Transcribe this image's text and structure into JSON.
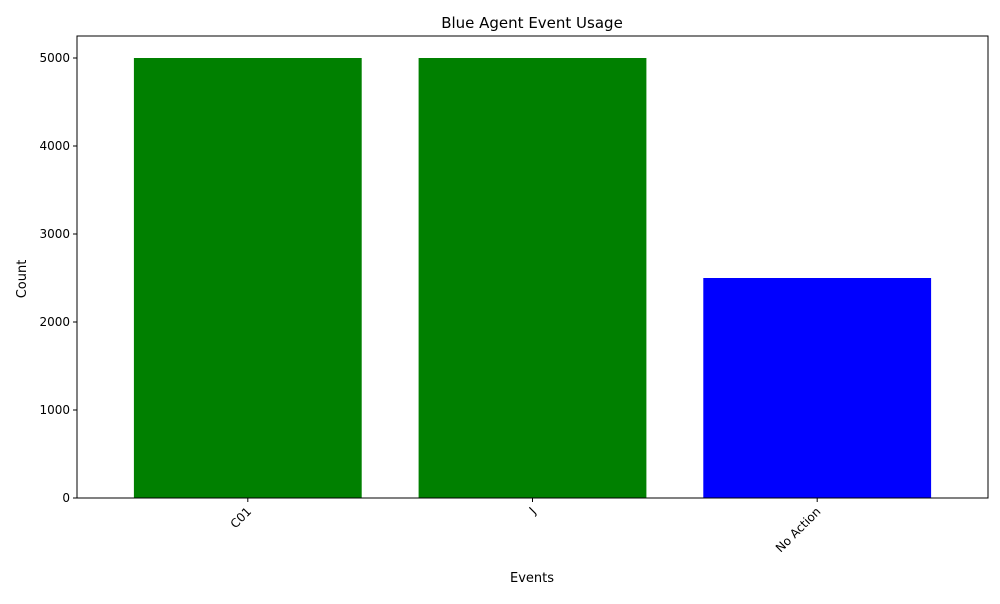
{
  "chart_data": {
    "type": "bar",
    "title": "Blue Agent Event Usage",
    "xlabel": "Events",
    "ylabel": "Count",
    "categories": [
      "C01",
      "J",
      "No Action"
    ],
    "values": [
      5000,
      5000,
      2500
    ],
    "bar_colors": [
      "#008000",
      "#008000",
      "#0000ff"
    ],
    "ylim": [
      0,
      5250
    ],
    "yticks": [
      0,
      1000,
      2000,
      3000,
      4000,
      5000
    ],
    "xtick_rotation": 45,
    "grid": false,
    "legend": "none"
  }
}
